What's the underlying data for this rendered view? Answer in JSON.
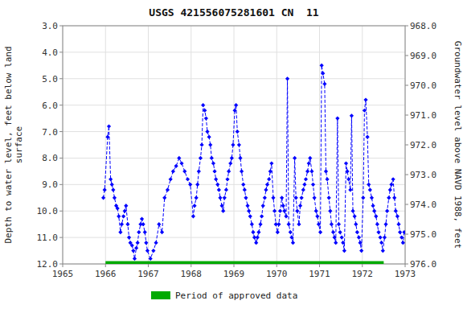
{
  "chart_data": {
    "type": "line",
    "title": "USGS 421556075281601 CN  11",
    "ylabel": "Depth to water level, feet below land\nsurface",
    "y2label": "Groundwater level above NAVD 1988, feet",
    "xlim": [
      1965,
      1973
    ],
    "xticks": [
      1965,
      1966,
      1967,
      1968,
      1969,
      1970,
      1971,
      1972,
      1973
    ],
    "ylim": [
      12.0,
      3.0
    ],
    "yticks": [
      {
        "value": 3.0,
        "label": "3.0"
      },
      {
        "value": 4.0,
        "label": "4.0"
      },
      {
        "value": 5.0,
        "label": "5.0"
      },
      {
        "value": 6.0,
        "label": "6.0"
      },
      {
        "value": 7.0,
        "label": "7.0"
      },
      {
        "value": 8.0,
        "label": "8.0"
      },
      {
        "value": 9.0,
        "label": "9.0"
      },
      {
        "value": 10.0,
        "label": "10.0"
      },
      {
        "value": 11.0,
        "label": "11.0"
      },
      {
        "value": 12.0,
        "label": "12.0"
      }
    ],
    "y2lim": [
      976.0,
      968.0
    ],
    "y2ticks": [
      {
        "value": 968.0,
        "label": "968.0"
      },
      {
        "value": 969.0,
        "label": "969.0"
      },
      {
        "value": 970.0,
        "label": "970.0"
      },
      {
        "value": 971.0,
        "label": "971.0"
      },
      {
        "value": 972.0,
        "label": "972.0"
      },
      {
        "value": 973.0,
        "label": "973.0"
      },
      {
        "value": 974.0,
        "label": "974.0"
      },
      {
        "value": 975.0,
        "label": "975.0"
      },
      {
        "value": 976.0,
        "label": "976.0"
      }
    ],
    "grid": true,
    "legend": "bottom",
    "series": [
      {
        "type": "line",
        "color": "#0000FF",
        "marker": "diamond",
        "line_style": "dashed",
        "x": [
          1965.95,
          1965.98,
          1966.05,
          1966.08,
          1966.12,
          1966.15,
          1966.18,
          1966.21,
          1966.25,
          1966.28,
          1966.31,
          1966.35,
          1966.38,
          1966.42,
          1966.45,
          1966.48,
          1966.52,
          1966.55,
          1966.58,
          1966.62,
          1966.65,
          1966.68,
          1966.72,
          1966.75,
          1966.78,
          1966.82,
          1966.85,
          1966.88,
          1966.92,
          1966.95,
          1966.98,
          1967.05,
          1967.12,
          1967.18,
          1967.25,
          1967.32,
          1967.38,
          1967.45,
          1967.52,
          1967.58,
          1967.65,
          1967.72,
          1967.78,
          1967.85,
          1967.92,
          1967.98,
          1968.05,
          1968.08,
          1968.12,
          1968.15,
          1968.18,
          1968.22,
          1968.25,
          1968.28,
          1968.32,
          1968.35,
          1968.38,
          1968.42,
          1968.45,
          1968.48,
          1968.52,
          1968.55,
          1968.58,
          1968.62,
          1968.65,
          1968.68,
          1968.72,
          1968.75,
          1968.78,
          1968.82,
          1968.85,
          1968.88,
          1968.92,
          1968.95,
          1968.98,
          1969.02,
          1969.05,
          1969.08,
          1969.12,
          1969.15,
          1969.18,
          1969.22,
          1969.25,
          1969.28,
          1969.32,
          1969.35,
          1969.38,
          1969.42,
          1969.45,
          1969.48,
          1969.52,
          1969.55,
          1969.58,
          1969.62,
          1969.65,
          1969.68,
          1969.72,
          1969.75,
          1969.78,
          1969.82,
          1969.85,
          1969.88,
          1969.92,
          1969.95,
          1969.98,
          1970.02,
          1970.05,
          1970.08,
          1970.12,
          1970.15,
          1970.18,
          1970.22,
          1970.25,
          1970.28,
          1970.32,
          1970.35,
          1970.38,
          1970.42,
          1970.45,
          1970.48,
          1970.52,
          1970.55,
          1970.58,
          1970.62,
          1970.65,
          1970.68,
          1970.72,
          1970.75,
          1970.78,
          1970.82,
          1970.85,
          1970.88,
          1970.92,
          1970.95,
          1970.98,
          1971.02,
          1971.05,
          1971.08,
          1971.12,
          1971.15,
          1971.18,
          1971.22,
          1971.25,
          1971.28,
          1971.32,
          1971.35,
          1971.38,
          1971.42,
          1971.45,
          1971.48,
          1971.52,
          1971.55,
          1971.58,
          1971.62,
          1971.65,
          1971.68,
          1971.72,
          1971.75,
          1971.78,
          1971.82,
          1971.85,
          1971.88,
          1971.92,
          1971.95,
          1971.98,
          1972.02,
          1972.05,
          1972.08,
          1972.12,
          1972.15,
          1972.18,
          1972.22,
          1972.25,
          1972.28,
          1972.32,
          1972.35,
          1972.38,
          1972.42,
          1972.45,
          1972.48,
          1972.52,
          1972.55,
          1972.58,
          1972.62,
          1972.65,
          1972.68,
          1972.72,
          1972.75,
          1972.78,
          1972.82,
          1972.85,
          1972.88,
          1972.92,
          1972.95,
          1972.98
        ],
        "values": [
          9.5,
          9.2,
          7.2,
          6.8,
          8.8,
          9.0,
          9.2,
          9.5,
          9.8,
          9.9,
          10.2,
          10.8,
          10.5,
          10.2,
          10.0,
          9.8,
          10.5,
          11.0,
          11.2,
          11.3,
          11.5,
          11.8,
          11.4,
          11.2,
          10.8,
          10.5,
          10.3,
          10.5,
          10.8,
          11.2,
          11.5,
          11.8,
          11.5,
          11.2,
          10.5,
          10.8,
          9.5,
          9.2,
          8.8,
          8.5,
          8.3,
          8.0,
          8.2,
          8.5,
          8.8,
          9.0,
          10.2,
          9.8,
          9.5,
          9.0,
          8.5,
          8.0,
          7.5,
          6.0,
          6.2,
          6.5,
          7.0,
          7.2,
          7.5,
          8.0,
          8.2,
          8.5,
          8.8,
          9.0,
          9.2,
          9.5,
          9.8,
          10.0,
          9.5,
          9.2,
          8.8,
          8.5,
          8.2,
          8.0,
          7.5,
          6.2,
          6.0,
          7.0,
          7.5,
          8.0,
          8.5,
          9.0,
          9.2,
          9.5,
          9.8,
          10.0,
          10.2,
          10.5,
          10.8,
          11.0,
          11.2,
          11.0,
          10.8,
          10.5,
          10.2,
          9.8,
          9.5,
          9.2,
          9.0,
          8.8,
          8.5,
          8.2,
          9.5,
          10.0,
          10.5,
          10.8,
          10.5,
          10.0,
          9.5,
          9.8,
          10.0,
          10.2,
          5.0,
          10.5,
          10.8,
          11.0,
          11.2,
          8.0,
          9.5,
          10.0,
          10.5,
          9.8,
          9.5,
          9.2,
          9.0,
          8.8,
          8.5,
          8.2,
          8.0,
          8.5,
          9.0,
          9.5,
          10.0,
          10.2,
          10.5,
          10.8,
          4.5,
          4.8,
          5.2,
          8.5,
          8.8,
          9.5,
          10.0,
          10.5,
          10.8,
          11.0,
          11.2,
          6.5,
          10.5,
          10.8,
          11.0,
          11.2,
          11.5,
          8.2,
          8.5,
          8.8,
          9.2,
          6.4,
          10.0,
          10.2,
          10.5,
          10.8,
          11.0,
          11.2,
          11.5,
          9.5,
          6.2,
          5.8,
          7.2,
          9.0,
          9.2,
          9.5,
          9.8,
          10.0,
          10.2,
          10.5,
          10.8,
          11.0,
          11.2,
          11.5,
          11.0,
          10.5,
          10.0,
          9.5,
          9.2,
          9.0,
          8.8,
          9.5,
          10.0,
          10.2,
          10.5,
          10.8,
          11.0,
          11.2,
          10.8
        ]
      },
      {
        "type": "segment",
        "name": "Period of approved data",
        "color": "#00AA00",
        "x": [
          1966.0,
          1972.5
        ],
        "values": [
          12.0,
          12.0
        ]
      }
    ]
  }
}
